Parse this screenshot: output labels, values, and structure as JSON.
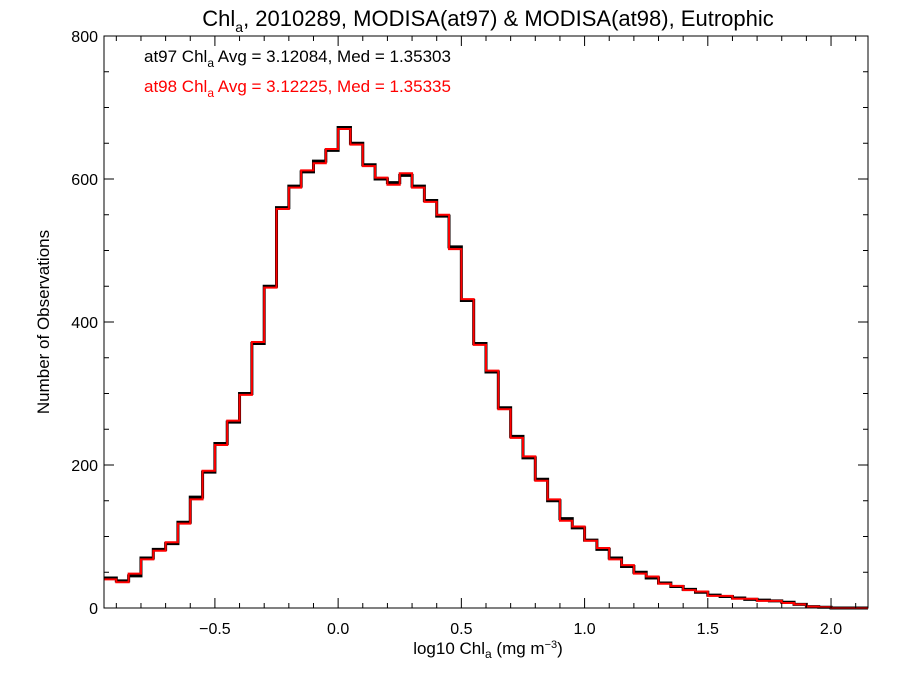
{
  "chart_data": {
    "type": "line",
    "step": true,
    "title": {
      "prefix": "Chl",
      "sub": "a",
      "suffix": ", 2010289, MODISA(at97) & MODISA(at98), Eutrophic"
    },
    "xlabel": {
      "prefix": "log10 Chl",
      "sub": "a",
      "suffix": " (mg m",
      "sup": "−3",
      "end": ")"
    },
    "ylabel": "Number of Observations",
    "xlim": [
      -0.95,
      2.15
    ],
    "ylim": [
      0,
      800
    ],
    "xticks": [
      -0.5,
      0.0,
      0.5,
      1.0,
      1.5,
      2.0
    ],
    "xtick_labels": [
      "−0.5",
      "0.0",
      "0.5",
      "1.0",
      "1.5",
      "2.0"
    ],
    "yticks": [
      0,
      200,
      400,
      600,
      800
    ],
    "ytick_labels": [
      "0",
      "200",
      "400",
      "600",
      "800"
    ],
    "legend": [
      {
        "prefix": "at97 Chl",
        "sub": "a",
        "suffix": " Avg = 3.12084, Med = 1.35303",
        "color": "#000000"
      },
      {
        "prefix": "at98 Chl",
        "sub": "a",
        "suffix": " Avg = 3.12225, Med = 1.35335",
        "color": "#ff0000"
      }
    ],
    "legend_position": "top-left",
    "series": [
      {
        "color": "#000000",
        "x": [
          -0.95,
          -0.9,
          -0.85,
          -0.8,
          -0.75,
          -0.7,
          -0.65,
          -0.6,
          -0.55,
          -0.5,
          -0.45,
          -0.4,
          -0.35,
          -0.3,
          -0.25,
          -0.2,
          -0.15,
          -0.1,
          -0.05,
          0.0,
          0.05,
          0.1,
          0.15,
          0.2,
          0.25,
          0.3,
          0.35,
          0.4,
          0.45,
          0.5,
          0.55,
          0.6,
          0.65,
          0.7,
          0.75,
          0.8,
          0.85,
          0.9,
          0.95,
          1.0,
          1.05,
          1.1,
          1.15,
          1.2,
          1.25,
          1.3,
          1.35,
          1.4,
          1.45,
          1.5,
          1.55,
          1.6,
          1.65,
          1.7,
          1.75,
          1.8,
          1.85,
          1.9,
          1.95,
          2.0,
          2.05,
          2.1,
          2.15
        ],
        "y": [
          42,
          38,
          45,
          70,
          82,
          90,
          120,
          155,
          190,
          230,
          260,
          300,
          370,
          450,
          560,
          590,
          610,
          625,
          640,
          672,
          650,
          620,
          600,
          595,
          605,
          590,
          570,
          548,
          505,
          430,
          370,
          330,
          280,
          240,
          210,
          180,
          150,
          125,
          112,
          95,
          82,
          70,
          58,
          50,
          42,
          35,
          30,
          26,
          22,
          18,
          16,
          14,
          12,
          11,
          10,
          8,
          5,
          2,
          1,
          0,
          0,
          0,
          0
        ]
      },
      {
        "color": "#ff0000",
        "x": [
          -0.95,
          -0.9,
          -0.85,
          -0.8,
          -0.75,
          -0.7,
          -0.65,
          -0.6,
          -0.55,
          -0.5,
          -0.45,
          -0.4,
          -0.35,
          -0.3,
          -0.25,
          -0.2,
          -0.15,
          -0.1,
          -0.05,
          0.0,
          0.05,
          0.1,
          0.15,
          0.2,
          0.25,
          0.3,
          0.35,
          0.4,
          0.45,
          0.5,
          0.55,
          0.6,
          0.65,
          0.7,
          0.75,
          0.8,
          0.85,
          0.9,
          0.95,
          1.0,
          1.05,
          1.1,
          1.15,
          1.2,
          1.25,
          1.3,
          1.35,
          1.4,
          1.45,
          1.5,
          1.55,
          1.6,
          1.65,
          1.7,
          1.75,
          1.8,
          1.85,
          1.9,
          1.95,
          2.0,
          2.05,
          2.1,
          2.15
        ],
        "y": [
          40,
          36,
          48,
          68,
          80,
          92,
          118,
          152,
          192,
          228,
          262,
          298,
          372,
          448,
          558,
          588,
          612,
          622,
          642,
          670,
          648,
          618,
          602,
          592,
          608,
          588,
          568,
          550,
          502,
          432,
          368,
          332,
          278,
          238,
          212,
          178,
          152,
          122,
          114,
          94,
          84,
          68,
          60,
          48,
          44,
          34,
          31,
          25,
          23,
          17,
          17,
          13,
          13,
          10,
          10,
          7,
          5,
          2,
          1,
          0,
          0,
          0,
          0
        ]
      }
    ]
  }
}
